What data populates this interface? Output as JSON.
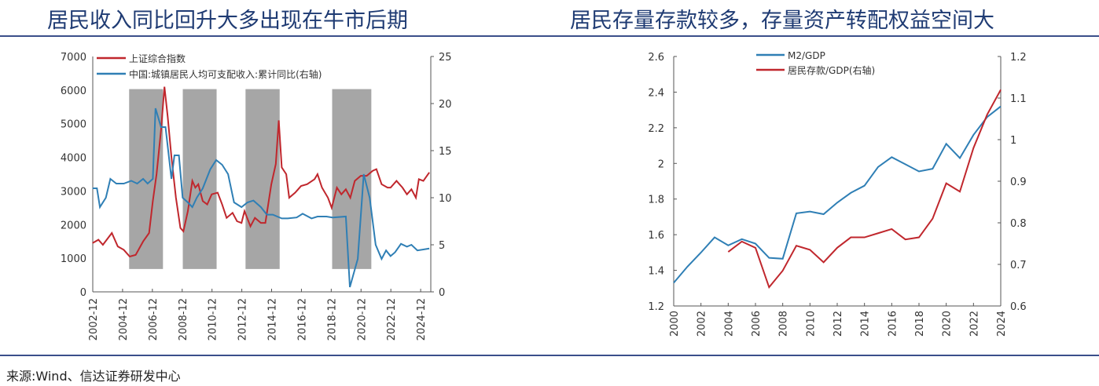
{
  "titles": {
    "left": "居民收入同比回升大多出现在牛市后期",
    "right": "居民存量存款较多，存量资产转配权益空间大"
  },
  "source": "来源:Wind、信达证券研发中心",
  "colors": {
    "red": "#c0272d",
    "blue": "#2f7fb5",
    "shade": "#a6a6a6",
    "rule": "#3a4f8a"
  },
  "chart_data": [
    {
      "type": "line",
      "title": "居民收入同比回升大多出现在牛市后期",
      "xticks": [
        "2002-12",
        "2004-12",
        "2006-12",
        "2008-12",
        "2010-12",
        "2012-12",
        "2014-12",
        "2016-12",
        "2018-12",
        "2020-12",
        "2022-12",
        "2024-12"
      ],
      "xlim": [
        2002.92,
        2025.6
      ],
      "ylim": [
        0,
        7000
      ],
      "yticks": [
        0,
        1000,
        2000,
        3000,
        4000,
        5000,
        6000,
        7000
      ],
      "y2lim": [
        0,
        25
      ],
      "y2ticks": [
        0,
        5,
        10,
        15,
        20,
        25
      ],
      "shaded_periods": [
        [
          2005.36,
          2007.63
        ],
        [
          2008.96,
          2011.23
        ],
        [
          2013.17,
          2015.46
        ],
        [
          2018.98,
          2021.61
        ]
      ],
      "shaded_range": [
        680,
        6030
      ],
      "series": [
        {
          "name": "上证综合指数",
          "axis": "left",
          "color": "#c0272d",
          "x": [
            2002.9,
            2003.3,
            2003.6,
            2004.2,
            2004.6,
            2005.0,
            2005.4,
            2005.8,
            2006.3,
            2006.7,
            2006.95,
            2007.2,
            2007.5,
            2007.73,
            2007.95,
            2008.2,
            2008.5,
            2008.8,
            2009.0,
            2009.3,
            2009.6,
            2009.8,
            2010.0,
            2010.3,
            2010.6,
            2010.9,
            2011.3,
            2011.6,
            2011.9,
            2012.3,
            2012.6,
            2012.9,
            2013.1,
            2013.5,
            2013.8,
            2014.2,
            2014.5,
            2014.9,
            2015.2,
            2015.4,
            2015.6,
            2015.9,
            2016.1,
            2016.5,
            2016.9,
            2017.3,
            2017.8,
            2018.0,
            2018.3,
            2018.7,
            2018.95,
            2019.3,
            2019.6,
            2019.9,
            2020.2,
            2020.5,
            2020.9,
            2021.3,
            2021.7,
            2021.95,
            2022.3,
            2022.7,
            2022.9,
            2023.3,
            2023.7,
            2024.0,
            2024.3,
            2024.6,
            2024.8,
            2025.1,
            2025.5
          ],
          "values": [
            1450,
            1550,
            1400,
            1750,
            1350,
            1250,
            1050,
            1100,
            1500,
            1750,
            2700,
            3500,
            4800,
            6100,
            5200,
            4000,
            2800,
            1900,
            1800,
            2400,
            3300,
            3100,
            3200,
            2700,
            2600,
            2900,
            2950,
            2600,
            2200,
            2350,
            2100,
            2050,
            2400,
            1950,
            2200,
            2050,
            2050,
            3200,
            3800,
            5100,
            3700,
            3500,
            2800,
            2950,
            3150,
            3200,
            3350,
            3500,
            3100,
            2800,
            2500,
            3100,
            2900,
            3050,
            2800,
            3300,
            3450,
            3450,
            3600,
            3650,
            3200,
            3100,
            3100,
            3300,
            3100,
            2900,
            3050,
            2800,
            3350,
            3300,
            3550
          ]
        },
        {
          "name": "中国:城镇居民人均可支配收入:累计同比(右轴)",
          "axis": "right",
          "color": "#2f7fb5",
          "x": [
            2002.9,
            2003.2,
            2003.4,
            2003.8,
            2004.1,
            2004.5,
            2005.0,
            2005.5,
            2005.9,
            2006.3,
            2006.6,
            2006.95,
            2007.13,
            2007.5,
            2007.8,
            2008.2,
            2008.4,
            2008.7,
            2008.95,
            2009.3,
            2009.6,
            2009.9,
            2010.3,
            2010.8,
            2011.2,
            2011.6,
            2012.0,
            2012.4,
            2012.9,
            2013.3,
            2013.7,
            2014.2,
            2014.6,
            2015.0,
            2015.6,
            2016.0,
            2016.6,
            2017.0,
            2017.6,
            2018.0,
            2018.6,
            2019.0,
            2019.9,
            2020.17,
            2020.7,
            2021.1,
            2021.5,
            2021.9,
            2022.3,
            2022.6,
            2022.9,
            2023.2,
            2023.6,
            2024.0,
            2024.3,
            2024.7,
            2025.1,
            2025.5
          ],
          "values": [
            11,
            11,
            9,
            10,
            12,
            11.5,
            11.5,
            11.8,
            11.5,
            12,
            11.5,
            12,
            19.5,
            17.5,
            17.5,
            12,
            14.5,
            14.5,
            10,
            9.5,
            9,
            10,
            11,
            13,
            14,
            13.5,
            12.5,
            9.5,
            9,
            9.5,
            9.7,
            9,
            8.2,
            8.2,
            7.8,
            7.8,
            7.9,
            8.3,
            7.8,
            8,
            8,
            7.9,
            8,
            0.5,
            3.5,
            12.5,
            10,
            5,
            3.5,
            4.4,
            3.8,
            4.2,
            5.1,
            4.8,
            5,
            4.4,
            4.5,
            4.6
          ]
        }
      ],
      "legend": "top-left",
      "grid": false
    },
    {
      "type": "line",
      "title": "居民存量存款较多，存量资产转配权益空间大",
      "x": [
        2000,
        2001,
        2002,
        2003,
        2004,
        2005,
        2006,
        2007,
        2008,
        2009,
        2010,
        2011,
        2012,
        2013,
        2014,
        2015,
        2016,
        2017,
        2018,
        2019,
        2020,
        2021,
        2022,
        2023,
        2024
      ],
      "xticks": [
        "2000",
        "2002",
        "2004",
        "2006",
        "2008",
        "2010",
        "2012",
        "2014",
        "2016",
        "2018",
        "2020",
        "2022",
        "2024"
      ],
      "ylim": [
        1.2,
        2.6
      ],
      "yticks": [
        "1.2",
        "1.4",
        "1.6",
        "1.8",
        "2",
        "2.2",
        "2.4",
        "2.6"
      ],
      "y2lim": [
        0.6,
        1.2
      ],
      "y2ticks": [
        "0.6",
        "0.7",
        "0.8",
        "0.9",
        "1",
        "1.1",
        "1.2"
      ],
      "series": [
        {
          "name": "M2/GDP",
          "axis": "left",
          "color": "#2f7fb5",
          "values": [
            1.33,
            1.42,
            1.5,
            1.585,
            1.54,
            1.575,
            1.55,
            1.47,
            1.465,
            1.72,
            1.73,
            1.715,
            1.78,
            1.835,
            1.875,
            1.98,
            2.035,
            1.995,
            1.955,
            1.97,
            2.11,
            2.03,
            2.16,
            2.26,
            2.32
          ]
        },
        {
          "name": "居民存款/GDP(右轴)",
          "axis": "right",
          "color": "#c0272d",
          "values": [
            null,
            null,
            null,
            null,
            0.73,
            0.755,
            0.74,
            0.645,
            0.685,
            0.745,
            0.735,
            0.705,
            0.74,
            0.765,
            0.765,
            0.775,
            0.785,
            0.76,
            0.765,
            0.81,
            0.895,
            0.875,
            0.98,
            1.06,
            1.12
          ]
        }
      ],
      "legend": "top-center",
      "grid": false
    }
  ]
}
